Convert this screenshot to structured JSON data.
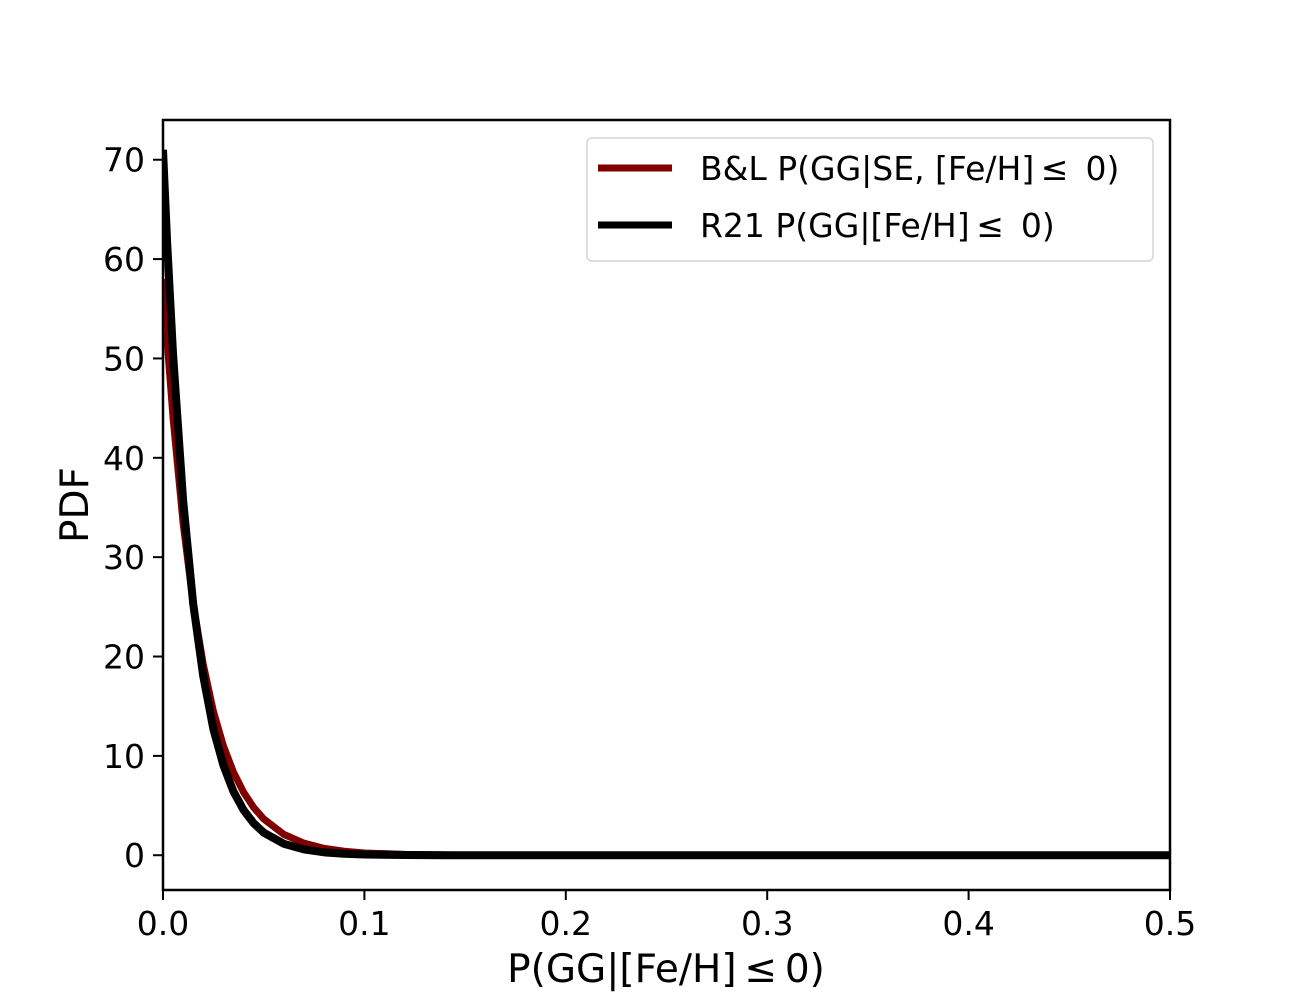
{
  "chart_data": {
    "type": "line",
    "title": "",
    "xlabel": "P(GG|[Fe/H] ≤ 0)",
    "ylabel": "PDF",
    "xlim": [
      0.0,
      0.5
    ],
    "ylim": [
      -3.5,
      74
    ],
    "xticks": [
      0.0,
      0.1,
      0.2,
      0.3,
      0.4,
      0.5
    ],
    "xtick_labels": [
      "0.0",
      "0.1",
      "0.2",
      "0.3",
      "0.4",
      "0.5"
    ],
    "yticks": [
      0,
      10,
      20,
      30,
      40,
      50,
      60,
      70
    ],
    "ytick_labels": [
      "0",
      "10",
      "20",
      "30",
      "40",
      "50",
      "60",
      "70"
    ],
    "grid": false,
    "legend_position": "top-right",
    "series": [
      {
        "name": "B&L P(GG|SE, [Fe/H] ≤  0)",
        "color": "#800000",
        "x": [
          0.0,
          0.002,
          0.005,
          0.01,
          0.015,
          0.02,
          0.025,
          0.03,
          0.035,
          0.04,
          0.045,
          0.05,
          0.06,
          0.07,
          0.08,
          0.09,
          0.1,
          0.12,
          0.14,
          0.16,
          0.2,
          0.3,
          0.4,
          0.5
        ],
        "y": [
          58.0,
          51.9,
          44.0,
          33.4,
          25.3,
          19.2,
          14.5,
          11.0,
          8.36,
          6.34,
          4.81,
          3.65,
          2.1,
          1.21,
          0.69,
          0.4,
          0.23,
          0.08,
          0.03,
          0.01,
          0.0,
          0.0,
          0.0,
          0.0
        ]
      },
      {
        "name": "R21 P(GG|[Fe/H] ≤  0)",
        "color": "#000000",
        "x": [
          0.0,
          0.002,
          0.005,
          0.01,
          0.015,
          0.02,
          0.025,
          0.03,
          0.035,
          0.04,
          0.045,
          0.05,
          0.06,
          0.07,
          0.08,
          0.09,
          0.1,
          0.12,
          0.14,
          0.16,
          0.2,
          0.3,
          0.4,
          0.5
        ],
        "y": [
          71.0,
          61.9,
          50.4,
          35.7,
          25.3,
          18.0,
          12.7,
          9.04,
          6.41,
          4.55,
          3.22,
          2.28,
          1.15,
          0.58,
          0.29,
          0.15,
          0.07,
          0.02,
          0.0,
          0.0,
          0.0,
          0.0,
          0.0,
          0.0
        ]
      }
    ]
  }
}
